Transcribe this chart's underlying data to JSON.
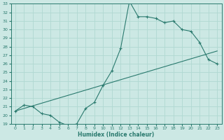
{
  "xlabel": "Humidex (Indice chaleur)",
  "ylabel": "",
  "xlim": [
    -0.5,
    23.5
  ],
  "ylim": [
    19,
    33
  ],
  "xticks": [
    0,
    1,
    2,
    3,
    4,
    5,
    6,
    7,
    8,
    9,
    10,
    11,
    12,
    13,
    14,
    15,
    16,
    17,
    18,
    19,
    20,
    21,
    22,
    23
  ],
  "yticks": [
    19,
    20,
    21,
    22,
    23,
    24,
    25,
    26,
    27,
    28,
    29,
    30,
    31,
    32,
    33
  ],
  "line_color": "#2a7a6e",
  "bg_color": "#cce8e4",
  "grid_color": "#b0d8d2",
  "data_x": [
    0,
    1,
    2,
    3,
    4,
    5,
    6,
    7,
    8,
    9,
    10,
    11,
    12,
    13,
    14,
    15,
    16,
    17,
    18,
    19,
    20,
    21,
    22,
    23
  ],
  "data_y": [
    20.5,
    21.2,
    21.0,
    20.2,
    20.0,
    19.2,
    18.8,
    19.0,
    20.8,
    21.5,
    23.5,
    25.2,
    27.8,
    33.3,
    31.5,
    31.5,
    31.3,
    30.8,
    31.0,
    30.0,
    29.8,
    28.5,
    26.5,
    26.0
  ],
  "trend_x": [
    0,
    23
  ],
  "trend_y": [
    20.5,
    27.5
  ],
  "marker": "+"
}
